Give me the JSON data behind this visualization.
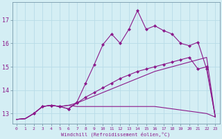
{
  "xlabel": "Windchill (Refroidissement éolien,°C)",
  "bg_color": "#d4eef4",
  "line_color": "#8b1a8b",
  "grid_color": "#b8dce8",
  "xlim": [
    -0.5,
    23.5
  ],
  "ylim": [
    12.55,
    17.75
  ],
  "xticks": [
    0,
    1,
    2,
    3,
    4,
    5,
    6,
    7,
    8,
    9,
    10,
    11,
    12,
    13,
    14,
    15,
    16,
    17,
    18,
    19,
    20,
    21,
    22,
    23
  ],
  "yticks": [
    13,
    14,
    15,
    16,
    17
  ],
  "series": [
    {
      "x": [
        0,
        1,
        2,
        3,
        4,
        5,
        6,
        7,
        8,
        9,
        10,
        11,
        12,
        13,
        14,
        15,
        16,
        17,
        18,
        19,
        20,
        21,
        22,
        23
      ],
      "y": [
        12.75,
        12.78,
        13.0,
        13.3,
        13.35,
        13.3,
        13.35,
        13.3,
        13.3,
        13.3,
        13.3,
        13.3,
        13.3,
        13.3,
        13.3,
        13.3,
        13.3,
        13.25,
        13.2,
        13.15,
        13.1,
        13.05,
        13.0,
        12.85
      ],
      "marker": false
    },
    {
      "x": [
        0,
        1,
        2,
        3,
        4,
        5,
        6,
        7,
        8,
        9,
        10,
        11,
        12,
        13,
        14,
        15,
        16,
        17,
        18,
        19,
        20,
        21,
        22,
        23
      ],
      "y": [
        12.75,
        12.78,
        13.0,
        13.3,
        13.35,
        13.3,
        13.35,
        13.45,
        13.6,
        13.75,
        13.9,
        14.05,
        14.2,
        14.35,
        14.5,
        14.65,
        14.8,
        14.9,
        15.0,
        15.1,
        15.2,
        15.3,
        15.4,
        12.85
      ],
      "marker": false
    },
    {
      "x": [
        0,
        1,
        2,
        3,
        4,
        5,
        6,
        7,
        8,
        9,
        10,
        11,
        12,
        13,
        14,
        15,
        16,
        17,
        18,
        19,
        20,
        21,
        22,
        23
      ],
      "y": [
        12.75,
        12.78,
        13.0,
        13.3,
        13.35,
        13.3,
        13.2,
        13.45,
        13.7,
        13.9,
        14.1,
        14.3,
        14.5,
        14.65,
        14.8,
        14.9,
        15.0,
        15.1,
        15.2,
        15.3,
        15.4,
        14.9,
        15.0,
        12.85
      ],
      "marker": true,
      "markevery": [
        2,
        3,
        4,
        5,
        6,
        7,
        8,
        9,
        10,
        11,
        12,
        13,
        14,
        15,
        16,
        17,
        18,
        19,
        20,
        21,
        22
      ]
    },
    {
      "x": [
        0,
        1,
        2,
        3,
        4,
        5,
        6,
        7,
        8,
        9,
        10,
        11,
        12,
        13,
        14,
        15,
        16,
        17,
        18,
        19,
        20,
        21,
        22,
        23
      ],
      "y": [
        12.75,
        12.78,
        13.0,
        13.3,
        13.35,
        13.3,
        13.2,
        13.5,
        14.3,
        15.1,
        15.95,
        16.4,
        16.0,
        16.6,
        17.4,
        16.6,
        16.75,
        16.55,
        16.4,
        16.0,
        15.9,
        16.05,
        14.9,
        12.85
      ],
      "marker": true,
      "markevery": [
        2,
        3,
        4,
        5,
        6,
        7,
        8,
        9,
        10,
        11,
        12,
        13,
        14,
        15,
        16,
        17,
        18,
        19,
        20,
        21,
        22
      ]
    }
  ]
}
